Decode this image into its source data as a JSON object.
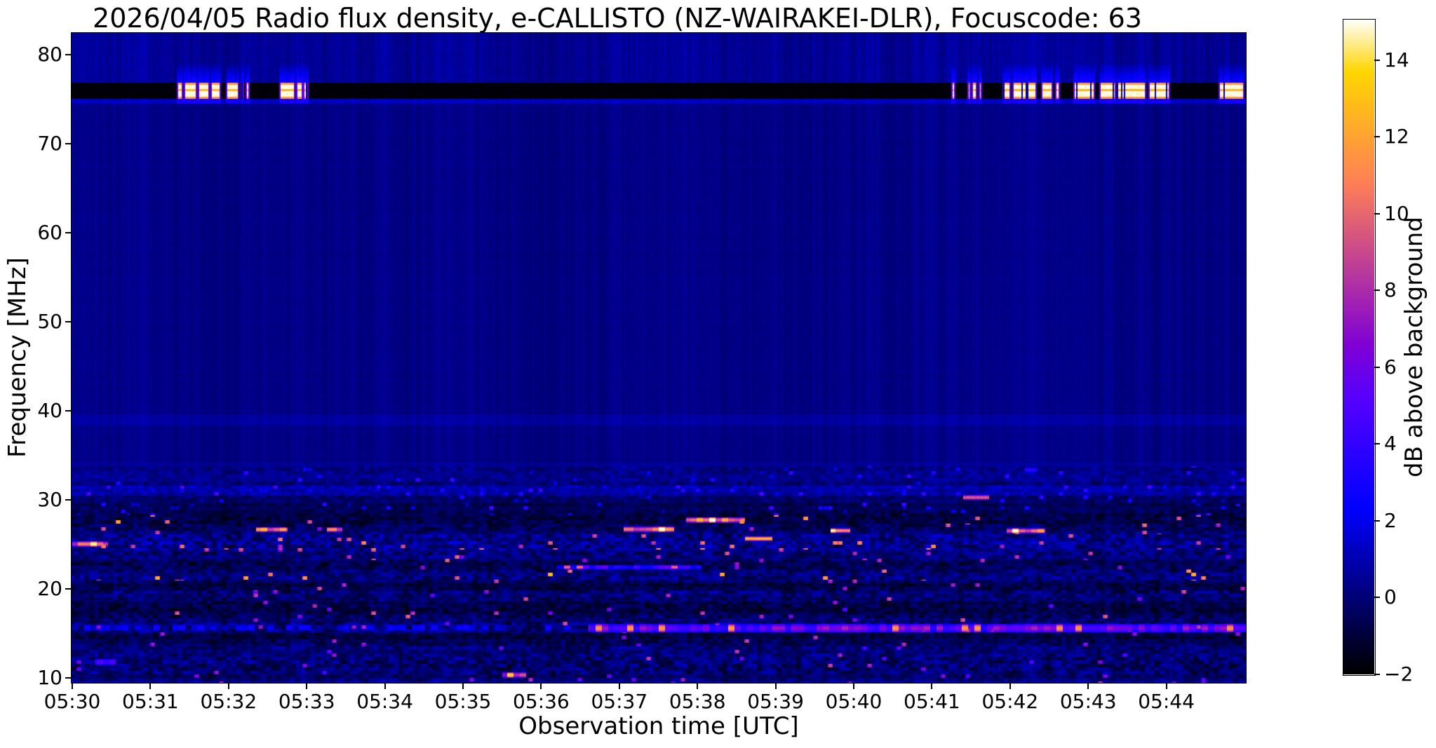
{
  "chart_data": {
    "type": "heatmap",
    "title": "2026/04/05  Radio flux density, e-CALLISTO (NZ-WAIRAKEI-DLR), Focuscode: 63",
    "xlabel": "Observation time [UTC]",
    "ylabel": "Frequency [MHz]",
    "colorbar_label": "dB above background",
    "x_ticks": [
      "05:30",
      "05:31",
      "05:32",
      "05:33",
      "05:34",
      "05:35",
      "05:36",
      "05:37",
      "05:38",
      "05:39",
      "05:40",
      "05:41",
      "05:42",
      "05:43",
      "05:44"
    ],
    "y_ticks": [
      80,
      70,
      60,
      50,
      40,
      30,
      20,
      10
    ],
    "colorbar_tick_labels": [
      "14",
      "12",
      "10",
      "8",
      "6",
      "4",
      "2",
      "0",
      "−2"
    ],
    "colorbar_tick_values": [
      14,
      12,
      10,
      8,
      6,
      4,
      2,
      0,
      -2
    ],
    "time_start_utc": "05:30",
    "time_span_minutes": 15.02,
    "freq_range_mhz": [
      9.5,
      82.4
    ],
    "value_range_db": [
      -2,
      15
    ],
    "colormap": "gnuplot2",
    "grid": false,
    "features": {
      "background_level_db": 0.25,
      "top_strip": {
        "freq_mhz": [
          77.0,
          82.4
        ],
        "base_db": 0.5,
        "description": "brighter blue striated noise strip above broadcast band"
      },
      "rfi_band": {
        "freq_mhz": [
          75.1,
          76.9
        ],
        "value_db": -2,
        "burst_value_db": 15,
        "description": "black dropout band with saturated white/yellow broadcast bursts and blue halos above",
        "burst_intervals_min": [
          [
            1.34,
            1.41
          ],
          [
            1.43,
            1.59
          ],
          [
            1.61,
            1.75
          ],
          [
            1.77,
            1.89
          ],
          [
            1.97,
            2.13
          ],
          [
            2.15,
            2.19
          ],
          [
            2.22,
            2.26
          ],
          [
            2.65,
            2.85
          ],
          [
            2.86,
            2.94
          ],
          [
            2.95,
            3.02
          ],
          [
            11.25,
            11.29
          ],
          [
            11.45,
            11.49
          ],
          [
            11.51,
            11.57
          ],
          [
            11.6,
            11.63
          ],
          [
            11.9,
            12.0
          ],
          [
            12.03,
            12.33
          ],
          [
            12.4,
            12.54
          ],
          [
            12.58,
            12.63
          ],
          [
            12.81,
            13.08
          ],
          [
            13.14,
            13.35
          ],
          [
            13.37,
            13.73
          ],
          [
            13.77,
            14.04
          ],
          [
            14.67,
            14.99
          ]
        ]
      },
      "soft_bands": [
        {
          "f_hi": 39.6,
          "f_lo": 38.4,
          "delta_db": 0.45
        },
        {
          "f_hi": 34.2,
          "f_lo": 33.8,
          "delta_db": 0.3
        }
      ],
      "noise_bands": [
        {
          "f_hi": 33.8,
          "f_lo": 31.6,
          "base_db": 0.15,
          "noise_db": 1.0,
          "spot_prob": 0.03,
          "spot_db": 2.8
        },
        {
          "f_hi": 31.6,
          "f_lo": 30.5,
          "base_db": 0.9,
          "noise_db": 1.2,
          "spot_prob": 0.06,
          "spot_db": 3.2
        },
        {
          "f_hi": 30.5,
          "f_lo": 29.6,
          "base_db": -0.3,
          "noise_db": 0.9,
          "spot_prob": 0.03,
          "spot_db": 2.6
        },
        {
          "f_hi": 29.6,
          "f_lo": 28.3,
          "base_db": -0.7,
          "noise_db": 0.9,
          "spot_prob": 0.04,
          "spot_db": 3.0
        },
        {
          "f_hi": 28.3,
          "f_lo": 27.3,
          "base_db": -0.8,
          "noise_db": 1.2,
          "spot_prob": 0.015,
          "spot_db": 10.5
        },
        {
          "f_hi": 27.3,
          "f_lo": 26.3,
          "base_db": -0.3,
          "noise_db": 1.5,
          "spot_prob": 0.012,
          "spot_db": 8.0
        },
        {
          "f_hi": 26.3,
          "f_lo": 25.4,
          "base_db": 0.0,
          "noise_db": 1.8,
          "spot_prob": 0.015,
          "spot_db": 9.0
        },
        {
          "f_hi": 25.4,
          "f_lo": 24.5,
          "base_db": 0.3,
          "noise_db": 2.0,
          "spot_prob": 0.05,
          "spot_db": 9.5
        },
        {
          "f_hi": 24.5,
          "f_lo": 23.3,
          "base_db": 0.0,
          "noise_db": 1.6,
          "spot_prob": 0.018,
          "spot_db": 8.0
        },
        {
          "f_hi": 23.3,
          "f_lo": 22.2,
          "base_db": -0.6,
          "noise_db": 1.3,
          "spot_prob": 0.012,
          "spot_db": 8.0
        },
        {
          "f_hi": 22.2,
          "f_lo": 21.0,
          "base_db": -0.2,
          "noise_db": 1.6,
          "spot_prob": 0.02,
          "spot_db": 11.0
        },
        {
          "f_hi": 21.0,
          "f_lo": 19.8,
          "base_db": -0.7,
          "noise_db": 1.3,
          "spot_prob": 0.014,
          "spot_db": 9.0
        },
        {
          "f_hi": 19.8,
          "f_lo": 18.6,
          "base_db": -0.2,
          "noise_db": 1.5,
          "spot_prob": 0.014,
          "spot_db": 7.0
        },
        {
          "f_hi": 18.6,
          "f_lo": 17.4,
          "base_db": -0.8,
          "noise_db": 1.2,
          "spot_prob": 0.01,
          "spot_db": 7.0
        },
        {
          "f_hi": 17.4,
          "f_lo": 16.2,
          "base_db": -0.4,
          "noise_db": 1.5,
          "spot_prob": 0.014,
          "spot_db": 8.0
        },
        {
          "f_hi": 16.2,
          "f_lo": 15.1,
          "base_db": 0.1,
          "noise_db": 1.7,
          "spot_prob": 0.02,
          "spot_db": 8.0
        },
        {
          "f_hi": 15.1,
          "f_lo": 13.9,
          "base_db": -0.7,
          "noise_db": 1.3,
          "spot_prob": 0.012,
          "spot_db": 8.0
        },
        {
          "f_hi": 13.9,
          "f_lo": 12.7,
          "base_db": -0.1,
          "noise_db": 1.6,
          "spot_prob": 0.014,
          "spot_db": 6.5
        },
        {
          "f_hi": 12.7,
          "f_lo": 11.3,
          "base_db": 0.0,
          "noise_db": 1.7,
          "spot_prob": 0.016,
          "spot_db": 7.0
        },
        {
          "f_hi": 11.3,
          "f_lo": 9.4,
          "base_db": -0.25,
          "noise_db": 1.6,
          "spot_prob": 0.014,
          "spot_db": 6.5
        }
      ],
      "lines": [
        {
          "f_hi": 30.55,
          "f_lo": 30.1,
          "t0": 11.4,
          "t1": 11.73,
          "v": 9.5,
          "blob": false,
          "sparse": false
        },
        {
          "f_hi": 16.05,
          "f_lo": 15.25,
          "t0": 6.6,
          "t1": 15.02,
          "v": 5.5,
          "blob": true,
          "sparse": false
        },
        {
          "f_hi": 16.0,
          "f_lo": 15.4,
          "t0": 0.0,
          "t1": 6.6,
          "v": 2.9,
          "blob": true,
          "sparse": true
        },
        {
          "f_hi": 12.15,
          "f_lo": 11.55,
          "t0": 0.28,
          "t1": 0.55,
          "v": 5.5,
          "blob": true,
          "sparse": false
        },
        {
          "f_hi": 25.35,
          "f_lo": 24.85,
          "t0": 0.0,
          "t1": 0.45,
          "v": 9.0,
          "blob": true,
          "sparse": false
        },
        {
          "f_hi": 22.7,
          "f_lo": 22.3,
          "t0": 6.2,
          "t1": 8.05,
          "v": 4.2,
          "blob": true,
          "sparse": false
        },
        {
          "f_hi": 28.05,
          "f_lo": 27.55,
          "t0": 7.85,
          "t1": 8.6,
          "v": 11.0,
          "blob": true,
          "sparse": false
        },
        {
          "f_hi": 26.95,
          "f_lo": 26.5,
          "t0": 2.35,
          "t1": 2.75,
          "v": 11.0,
          "blob": true,
          "sparse": false
        },
        {
          "f_hi": 26.95,
          "f_lo": 26.5,
          "t0": 3.25,
          "t1": 3.45,
          "v": 10.0,
          "blob": true,
          "sparse": false
        },
        {
          "f_hi": 27.0,
          "f_lo": 26.5,
          "t0": 7.05,
          "t1": 7.7,
          "v": 10.5,
          "blob": true,
          "sparse": false
        },
        {
          "f_hi": 26.8,
          "f_lo": 26.4,
          "t0": 9.7,
          "t1": 9.95,
          "v": 9.5,
          "blob": true,
          "sparse": false
        },
        {
          "f_hi": 26.8,
          "f_lo": 26.35,
          "t0": 11.95,
          "t1": 12.45,
          "v": 10.5,
          "blob": true,
          "sparse": false
        },
        {
          "f_hi": 25.9,
          "f_lo": 25.5,
          "t0": 8.6,
          "t1": 8.95,
          "v": 12.5,
          "blob": false,
          "sparse": false
        },
        {
          "f_hi": 33.6,
          "f_lo": 33.2,
          "t0": 12.19,
          "t1": 12.34,
          "v": 3.5,
          "blob": false,
          "sparse": false
        },
        {
          "f_hi": 10.65,
          "f_lo": 10.15,
          "t0": 5.5,
          "t1": 5.8,
          "v": 8.0,
          "blob": true,
          "sparse": false
        }
      ]
    }
  },
  "colors": {
    "background": "#ffffff",
    "axis": "#000000",
    "text": "#000000"
  }
}
